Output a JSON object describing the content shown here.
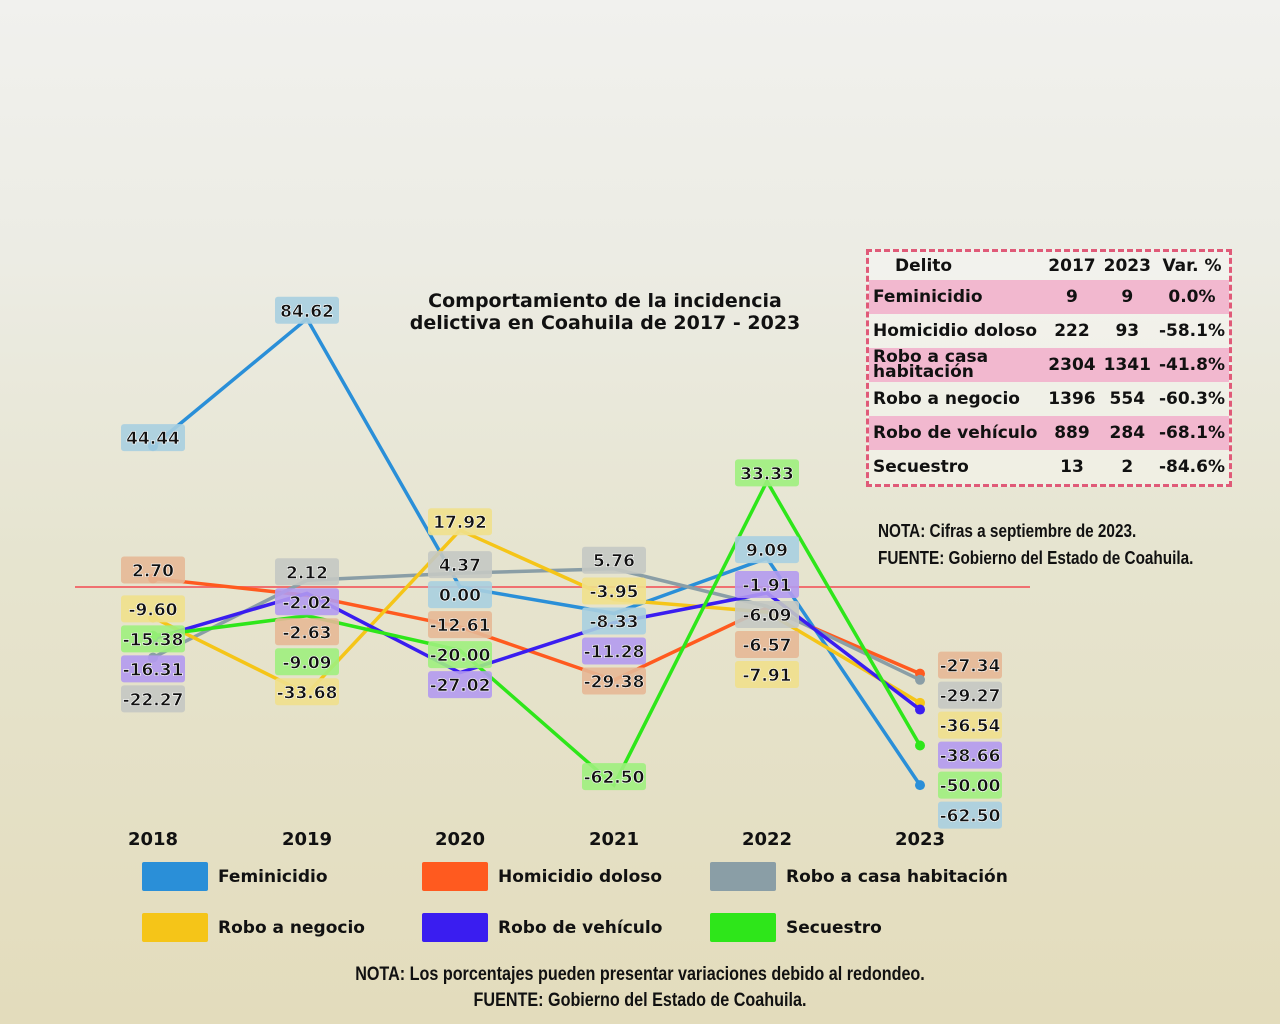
{
  "chart_data": {
    "type": "line",
    "title": "Comportamiento de la incidencia delictiva en Coahuila de 2017 - 2023",
    "x": [
      "2018",
      "2019",
      "2020",
      "2021",
      "2022",
      "2023"
    ],
    "series": [
      {
        "name": "Feminicidio",
        "color": "#2a8fd8",
        "label_bg": "#a8cfe0",
        "values": [
          44.44,
          84.62,
          0.0,
          -8.33,
          9.09,
          -62.5
        ]
      },
      {
        "name": "Homicidio doloso",
        "color": "#ff5a1f",
        "label_bg": "#e6b896",
        "values": [
          2.7,
          -2.63,
          -12.61,
          -29.38,
          -6.57,
          -27.34
        ]
      },
      {
        "name": "Robo a casa habitación",
        "color": "#8a9ea6",
        "label_bg": "#c4c8c3",
        "values": [
          -22.27,
          2.12,
          4.37,
          5.76,
          -6.09,
          -29.27
        ]
      },
      {
        "name": "Robo a negocio",
        "color": "#f5c518",
        "label_bg": "#f0e08c",
        "values": [
          -9.6,
          -33.68,
          17.92,
          -3.95,
          -7.91,
          -36.54
        ]
      },
      {
        "name": "Robo de vehículo",
        "color": "#3a1df0",
        "label_bg": "#b39af0",
        "values": [
          -16.31,
          -2.02,
          -27.02,
          -11.28,
          -1.91,
          -38.66
        ]
      },
      {
        "name": "Secuestro",
        "color": "#2ee61a",
        "label_bg": "#9ef07e",
        "values": [
          -15.38,
          -9.09,
          -20.0,
          -62.5,
          33.33,
          -50.0
        ]
      }
    ],
    "reference_line": 0,
    "legend": "bottom"
  },
  "table": {
    "headers": [
      "Delito",
      "2017",
      "2023",
      "Var. %"
    ],
    "rows": [
      [
        "Feminicidio",
        "9",
        "9",
        "0.0%"
      ],
      [
        "Homicidio doloso",
        "222",
        "93",
        "-58.1%"
      ],
      [
        "Robo a casa habitación",
        "2304",
        "1341",
        "-41.8%"
      ],
      [
        "Robo a negocio",
        "1396",
        "554",
        "-60.3%"
      ],
      [
        "Robo de vehículo",
        "889",
        "284",
        "-68.1%"
      ],
      [
        "Secuestro",
        "13",
        "2",
        "-84.6%"
      ]
    ]
  },
  "notes": {
    "nota": "NOTA: Cifras a septiembre de 2023.",
    "fuente": "FUENTE: Gobierno del Estado de Coahuila."
  },
  "footer": {
    "nota": "NOTA: Los porcentajes pueden presentar variaciones debido al redondeo.",
    "fuente": "FUENTE: Gobierno del Estado de Coahuila."
  }
}
